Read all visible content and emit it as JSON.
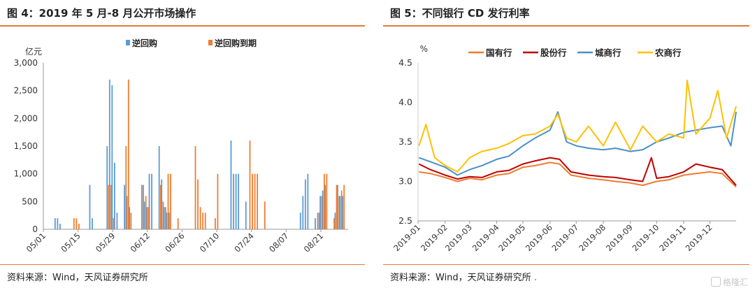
{
  "left_panel": {
    "title": "图 4：2019 年 5 月-8 月公开市场操作",
    "source": "资料来源：Wind，天风证券研究所"
  },
  "right_panel": {
    "title": "图 5：不同银行 CD 发行利率",
    "source": "资料来源：Wind，天风证券研究所",
    "source_mark": "."
  },
  "watermark": {
    "text": "格隆汇",
    "icon": "logo-g-icon"
  },
  "colors": {
    "accent": "#e07b39",
    "blue": "#5b9bd5",
    "orange": "#ed7d31",
    "red": "#c00000",
    "yellow": "#ffc000",
    "steel": "#4a90c8"
  },
  "chart_data": [
    {
      "type": "bar",
      "ylabel": "亿元",
      "ylim": [
        0,
        3000
      ],
      "yticks": [
        "0",
        "500",
        "1,000",
        "1,500",
        "2,000",
        "2,500",
        "3,000"
      ],
      "xticks": [
        "05/01",
        "05/15",
        "05/29",
        "06/12",
        "06/26",
        "07/10",
        "07/24",
        "08/07",
        "08/21"
      ],
      "xstart": "2019-05-01",
      "xend": "2019-08-31",
      "legend": "top",
      "series": [
        {
          "name": "逆回购",
          "color": "#5b9bd5",
          "points": [
            [
              "2019-05-06",
              200
            ],
            [
              "2019-05-07",
              200
            ],
            [
              "2019-05-08",
              100
            ],
            [
              "2019-05-20",
              800
            ],
            [
              "2019-05-21",
              200
            ],
            [
              "2019-05-27",
              1500
            ],
            [
              "2019-05-28",
              2700
            ],
            [
              "2019-05-29",
              2600
            ],
            [
              "2019-05-30",
              1200
            ],
            [
              "2019-05-31",
              300
            ],
            [
              "2019-06-03",
              800
            ],
            [
              "2019-06-04",
              600
            ],
            [
              "2019-06-05",
              400
            ],
            [
              "2019-06-10",
              800
            ],
            [
              "2019-06-11",
              500
            ],
            [
              "2019-06-12",
              400
            ],
            [
              "2019-06-13",
              1000
            ],
            [
              "2019-06-14",
              1000
            ],
            [
              "2019-06-17",
              1500
            ],
            [
              "2019-06-18",
              900
            ],
            [
              "2019-06-19",
              400
            ],
            [
              "2019-06-20",
              300
            ],
            [
              "2019-06-21",
              300
            ],
            [
              "2019-07-16",
              1600
            ],
            [
              "2019-07-17",
              1000
            ],
            [
              "2019-07-18",
              1000
            ],
            [
              "2019-07-19",
              1000
            ],
            [
              "2019-07-22",
              500
            ],
            [
              "2019-08-13",
              300
            ],
            [
              "2019-08-14",
              600
            ],
            [
              "2019-08-15",
              900
            ],
            [
              "2019-08-16",
              1000
            ],
            [
              "2019-08-19",
              200
            ],
            [
              "2019-08-20",
              300
            ],
            [
              "2019-08-21",
              600
            ],
            [
              "2019-08-22",
              700
            ],
            [
              "2019-08-23",
              800
            ],
            [
              "2019-08-27",
              300
            ],
            [
              "2019-08-28",
              800
            ],
            [
              "2019-08-29",
              600
            ],
            [
              "2019-08-30",
              600
            ]
          ]
        },
        {
          "name": "逆回购到期",
          "color": "#ed7d31",
          "points": [
            [
              "2019-05-13",
              200
            ],
            [
              "2019-05-14",
              200
            ],
            [
              "2019-05-15",
              100
            ],
            [
              "2019-05-27",
              800
            ],
            [
              "2019-05-28",
              800
            ],
            [
              "2019-05-29",
              200
            ],
            [
              "2019-06-03",
              1500
            ],
            [
              "2019-06-04",
              2700
            ],
            [
              "2019-06-05",
              300
            ],
            [
              "2019-06-10",
              800
            ],
            [
              "2019-06-11",
              600
            ],
            [
              "2019-06-12",
              400
            ],
            [
              "2019-06-17",
              800
            ],
            [
              "2019-06-18",
              500
            ],
            [
              "2019-06-19",
              400
            ],
            [
              "2019-06-20",
              1000
            ],
            [
              "2019-06-21",
              1000
            ],
            [
              "2019-06-24",
              200
            ],
            [
              "2019-07-01",
              1500
            ],
            [
              "2019-07-02",
              900
            ],
            [
              "2019-07-03",
              400
            ],
            [
              "2019-07-04",
              300
            ],
            [
              "2019-07-05",
              300
            ],
            [
              "2019-07-09",
              200
            ],
            [
              "2019-07-10",
              1000
            ],
            [
              "2019-07-23",
              1600
            ],
            [
              "2019-07-24",
              1000
            ],
            [
              "2019-07-25",
              1000
            ],
            [
              "2019-07-26",
              1000
            ],
            [
              "2019-07-29",
              500
            ],
            [
              "2019-08-20",
              300
            ],
            [
              "2019-08-21",
              600
            ],
            [
              "2019-08-22",
              1000
            ],
            [
              "2019-08-23",
              1000
            ],
            [
              "2019-08-26",
              200
            ],
            [
              "2019-08-27",
              800
            ],
            [
              "2019-08-28",
              600
            ],
            [
              "2019-08-29",
              700
            ],
            [
              "2019-08-30",
              800
            ]
          ]
        }
      ]
    },
    {
      "type": "line",
      "ylabel": "%",
      "ylim": [
        2.5,
        4.5
      ],
      "yticks": [
        "2.5",
        "3.0",
        "3.5",
        "4.0",
        "4.5"
      ],
      "xticks": [
        "2019-01",
        "2019-02",
        "2019-03",
        "2019-04",
        "2019-05",
        "2019-06",
        "2019-07",
        "2019-08",
        "2019-09",
        "2019-10",
        "2019-11",
        "2019-12"
      ],
      "xstart": "2019-01-01",
      "xend": "2019-12-31",
      "legend": "top",
      "series": [
        {
          "name": "国有行",
          "color": "#ed7d31",
          "points": [
            [
              "2019-01-02",
              3.12
            ],
            [
              "2019-01-15",
              3.1
            ],
            [
              "2019-02-01",
              3.05
            ],
            [
              "2019-02-15",
              3.0
            ],
            [
              "2019-03-01",
              3.04
            ],
            [
              "2019-03-15",
              3.02
            ],
            [
              "2019-04-01",
              3.08
            ],
            [
              "2019-04-15",
              3.1
            ],
            [
              "2019-05-01",
              3.18
            ],
            [
              "2019-05-15",
              3.2
            ],
            [
              "2019-06-01",
              3.24
            ],
            [
              "2019-06-12",
              3.22
            ],
            [
              "2019-06-25",
              3.08
            ],
            [
              "2019-07-15",
              3.04
            ],
            [
              "2019-08-01",
              3.02
            ],
            [
              "2019-08-15",
              3.0
            ],
            [
              "2019-09-01",
              2.98
            ],
            [
              "2019-09-15",
              2.95
            ],
            [
              "2019-10-01",
              3.0
            ],
            [
              "2019-10-15",
              3.02
            ],
            [
              "2019-11-01",
              3.08
            ],
            [
              "2019-11-15",
              3.1
            ],
            [
              "2019-12-01",
              3.12
            ],
            [
              "2019-12-15",
              3.1
            ],
            [
              "2019-12-31",
              2.93
            ]
          ]
        },
        {
          "name": "股份行",
          "color": "#c00000",
          "points": [
            [
              "2019-01-02",
              3.22
            ],
            [
              "2019-01-15",
              3.15
            ],
            [
              "2019-02-01",
              3.08
            ],
            [
              "2019-02-15",
              3.03
            ],
            [
              "2019-03-01",
              3.06
            ],
            [
              "2019-03-15",
              3.05
            ],
            [
              "2019-04-01",
              3.12
            ],
            [
              "2019-04-15",
              3.14
            ],
            [
              "2019-05-01",
              3.22
            ],
            [
              "2019-05-15",
              3.26
            ],
            [
              "2019-06-01",
              3.3
            ],
            [
              "2019-06-12",
              3.28
            ],
            [
              "2019-06-25",
              3.12
            ],
            [
              "2019-07-15",
              3.08
            ],
            [
              "2019-08-01",
              3.06
            ],
            [
              "2019-08-15",
              3.05
            ],
            [
              "2019-09-01",
              3.02
            ],
            [
              "2019-09-15",
              3.0
            ],
            [
              "2019-09-25",
              3.3
            ],
            [
              "2019-10-01",
              3.04
            ],
            [
              "2019-10-15",
              3.06
            ],
            [
              "2019-11-01",
              3.12
            ],
            [
              "2019-11-15",
              3.22
            ],
            [
              "2019-12-01",
              3.18
            ],
            [
              "2019-12-15",
              3.15
            ],
            [
              "2019-12-31",
              2.95
            ]
          ]
        },
        {
          "name": "城商行",
          "color": "#4a90c8",
          "points": [
            [
              "2019-01-02",
              3.3
            ],
            [
              "2019-01-15",
              3.25
            ],
            [
              "2019-02-01",
              3.18
            ],
            [
              "2019-02-15",
              3.08
            ],
            [
              "2019-03-01",
              3.15
            ],
            [
              "2019-03-15",
              3.2
            ],
            [
              "2019-04-01",
              3.28
            ],
            [
              "2019-04-15",
              3.32
            ],
            [
              "2019-05-01",
              3.45
            ],
            [
              "2019-05-15",
              3.55
            ],
            [
              "2019-06-01",
              3.65
            ],
            [
              "2019-06-10",
              3.88
            ],
            [
              "2019-06-20",
              3.5
            ],
            [
              "2019-07-01",
              3.45
            ],
            [
              "2019-07-15",
              3.42
            ],
            [
              "2019-08-01",
              3.4
            ],
            [
              "2019-08-15",
              3.42
            ],
            [
              "2019-09-01",
              3.38
            ],
            [
              "2019-09-15",
              3.4
            ],
            [
              "2019-10-01",
              3.5
            ],
            [
              "2019-10-15",
              3.55
            ],
            [
              "2019-11-01",
              3.62
            ],
            [
              "2019-11-15",
              3.65
            ],
            [
              "2019-12-01",
              3.68
            ],
            [
              "2019-12-15",
              3.7
            ],
            [
              "2019-12-25",
              3.45
            ],
            [
              "2019-12-31",
              3.88
            ]
          ]
        },
        {
          "name": "农商行",
          "color": "#ffc000",
          "points": [
            [
              "2019-01-02",
              3.45
            ],
            [
              "2019-01-10",
              3.72
            ],
            [
              "2019-01-20",
              3.3
            ],
            [
              "2019-02-01",
              3.2
            ],
            [
              "2019-02-15",
              3.12
            ],
            [
              "2019-03-01",
              3.3
            ],
            [
              "2019-03-15",
              3.38
            ],
            [
              "2019-04-01",
              3.42
            ],
            [
              "2019-04-15",
              3.48
            ],
            [
              "2019-05-01",
              3.58
            ],
            [
              "2019-05-15",
              3.6
            ],
            [
              "2019-06-01",
              3.7
            ],
            [
              "2019-06-10",
              3.85
            ],
            [
              "2019-06-20",
              3.55
            ],
            [
              "2019-07-01",
              3.5
            ],
            [
              "2019-07-15",
              3.7
            ],
            [
              "2019-08-01",
              3.45
            ],
            [
              "2019-08-15",
              3.75
            ],
            [
              "2019-09-01",
              3.4
            ],
            [
              "2019-09-15",
              3.7
            ],
            [
              "2019-10-01",
              3.5
            ],
            [
              "2019-10-15",
              3.6
            ],
            [
              "2019-11-01",
              3.55
            ],
            [
              "2019-11-05",
              4.28
            ],
            [
              "2019-11-15",
              3.6
            ],
            [
              "2019-12-01",
              3.8
            ],
            [
              "2019-12-10",
              4.15
            ],
            [
              "2019-12-20",
              3.55
            ],
            [
              "2019-12-31",
              3.95
            ]
          ]
        }
      ]
    }
  ]
}
